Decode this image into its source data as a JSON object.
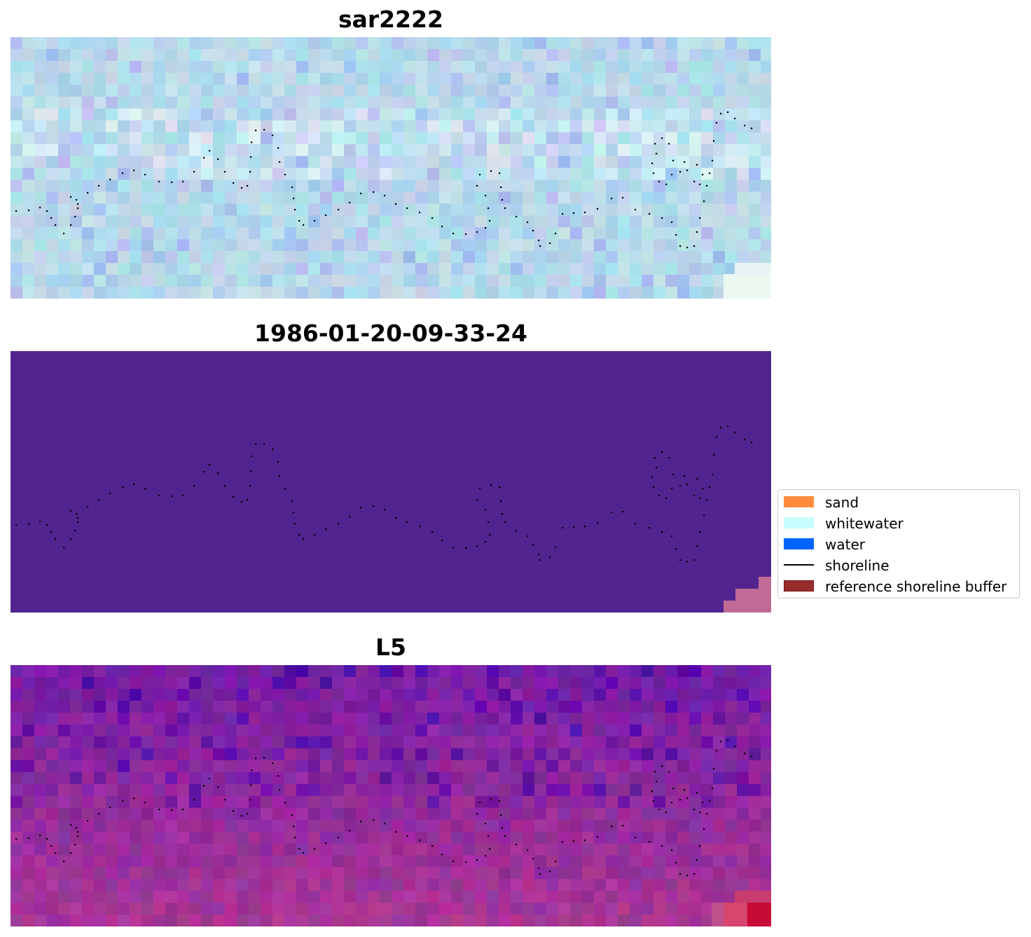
{
  "panels": [
    {
      "title": "sar2222",
      "style": "sar"
    },
    {
      "title": "1986-01-20-09-33-24",
      "style": "class"
    },
    {
      "title": "L5",
      "style": "ndwi"
    }
  ],
  "legend": {
    "items": [
      {
        "label": "sand",
        "kind": "patch",
        "color": "#ff8c3c"
      },
      {
        "label": "whitewater",
        "kind": "patch",
        "color": "#c8fdfd"
      },
      {
        "label": "water",
        "kind": "patch",
        "color": "#0064ff"
      },
      {
        "label": "shoreline",
        "kind": "line",
        "color": "#000000"
      },
      {
        "label": "reference shoreline buffer",
        "kind": "patch",
        "color": "#962d2d",
        "edge": "#7a1010"
      }
    ]
  },
  "colors": {
    "class_background": "#52248f",
    "buffer_overlay": "#c06a96",
    "sar_base": "#b7dbea",
    "ndwi_base": "#8a3aa8",
    "shoreline_dots": "#000000"
  }
}
